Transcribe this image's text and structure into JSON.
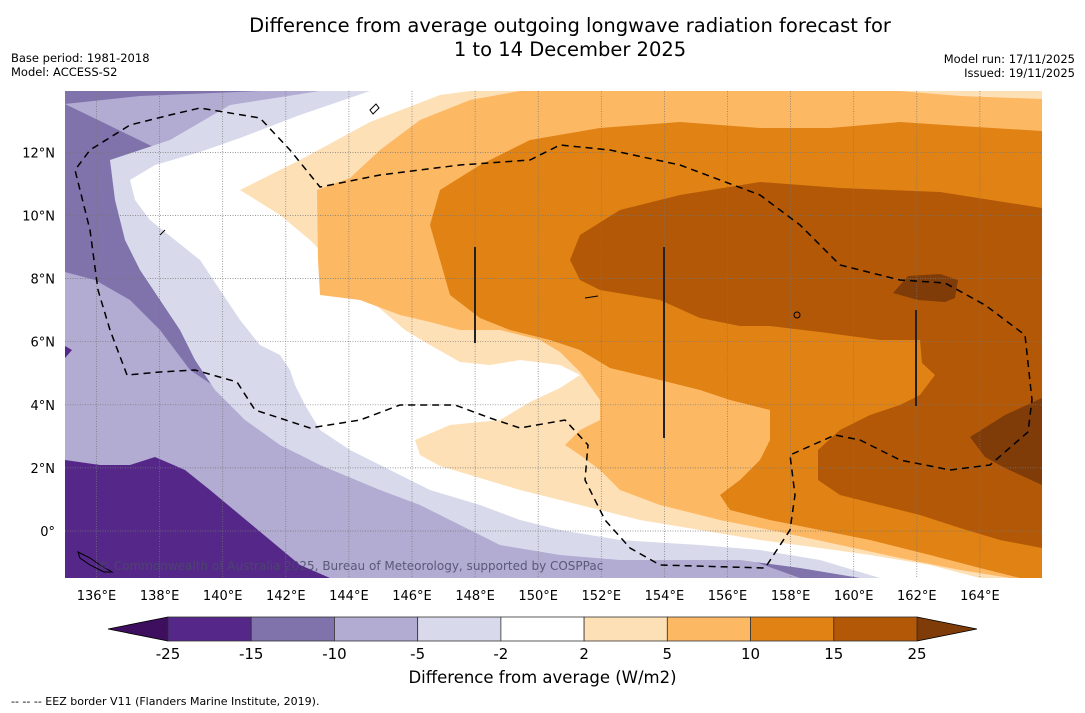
{
  "header": {
    "title_line1": "Difference from average outgoing longwave radiation forecast for",
    "title_line2": "1 to 14 December 2025",
    "base_period": "Base period: 1981-2018",
    "model": "Model: ACCESS-S2",
    "model_run": "Model run: 17/11/2025",
    "issued": "Issued: 19/11/2025"
  },
  "map": {
    "copyright": "© Commonwealth of Australia 2025, Bureau of Meteorology, supported by COSPPac",
    "extent": {
      "lon_min": 135,
      "lon_max": 166,
      "lat_min": -1.5,
      "lat_max": 14
    },
    "lon_ticks": [
      "136°E",
      "138°E",
      "140°E",
      "142°E",
      "144°E",
      "146°E",
      "148°E",
      "150°E",
      "152°E",
      "154°E",
      "156°E",
      "158°E",
      "160°E",
      "162°E",
      "164°E"
    ],
    "lat_ticks": [
      "12°N",
      "10°N",
      "8°N",
      "6°N",
      "4°N",
      "2°N",
      "0°"
    ],
    "legend_note": "--  --  -- EEZ border V11 (Flanders Marine Institute, 2019)."
  },
  "colorbar": {
    "label": "Difference from average (W/m2)",
    "ticks": [
      "-25",
      "-15",
      "-10",
      "-5",
      "-2",
      "2",
      "5",
      "10",
      "15",
      "25"
    ],
    "colors": {
      "below_-25": "#3d0f5e",
      "-25_-15": "#542788",
      "-15_-10": "#8073ac",
      "-10_-5": "#b2abd2",
      "-5_-2": "#d8daeb",
      "-2_2": "#ffffff",
      "2_5": "#fee0b6",
      "5_10": "#fdb863",
      "10_15": "#e08214",
      "15_25": "#b35806",
      "above_25": "#7f3b08"
    }
  }
}
